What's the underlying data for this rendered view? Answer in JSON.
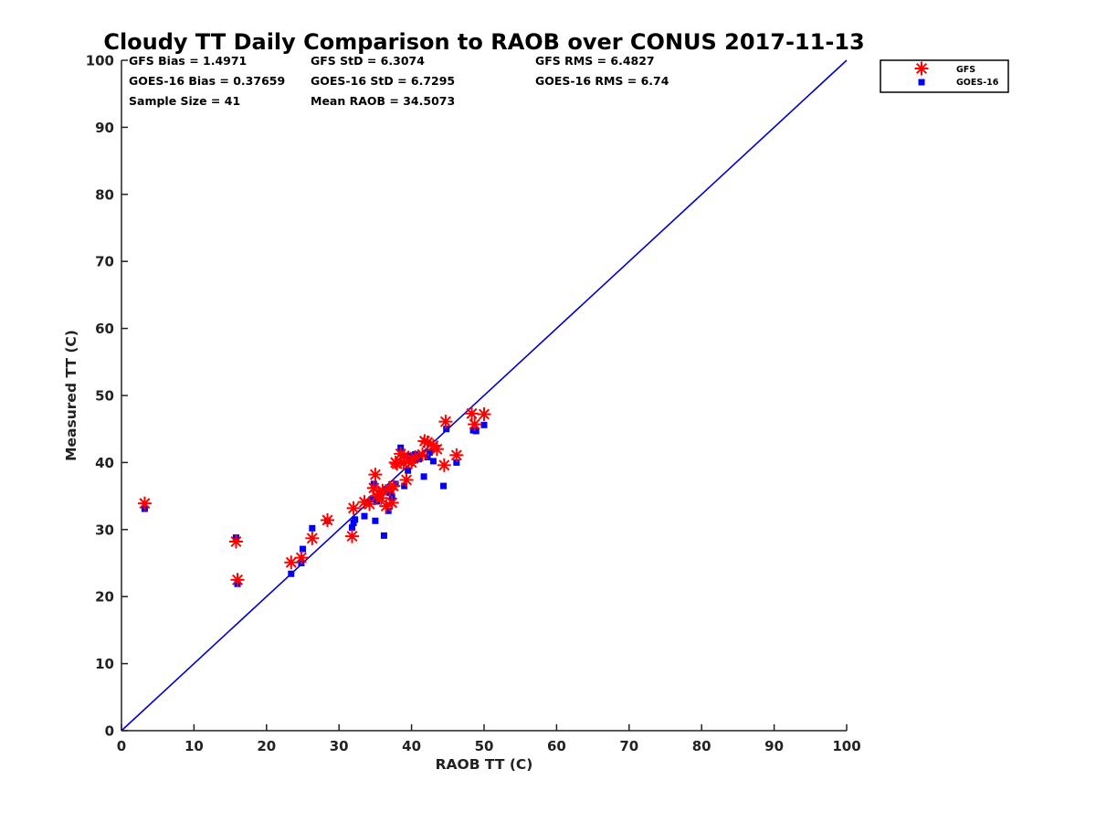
{
  "chart_data": {
    "type": "scatter",
    "title": "Cloudy TT Daily Comparison to RAOB over CONUS 2017-11-13",
    "xlabel": "RAOB TT (C)",
    "ylabel": "Measured TT (C)",
    "xlim": [
      0,
      100
    ],
    "ylim": [
      0,
      100
    ],
    "xticks": [
      "0",
      "10",
      "20",
      "30",
      "40",
      "50",
      "60",
      "70",
      "80",
      "90",
      "100"
    ],
    "yticks": [
      "0",
      "10",
      "20",
      "30",
      "40",
      "50",
      "60",
      "70",
      "80",
      "90",
      "100"
    ],
    "grid": false,
    "legend_position": "outside-top-right",
    "reference_line": {
      "x": [
        0,
        100
      ],
      "y": [
        0,
        100
      ],
      "color": "#0000cc"
    },
    "stats": [
      "GFS Bias = 1.4971",
      "GFS StD = 6.3074",
      "GFS RMS = 6.4827",
      "GOES-16 Bias = 0.37659",
      "GOES-16 StD = 6.7295",
      "GOES-16 RMS = 6.74",
      "Sample Size = 41",
      "Mean RAOB = 34.5073"
    ],
    "series": [
      {
        "name": "GFS",
        "marker": "asterisk",
        "color": "#ff0000",
        "x": [
          3.2,
          15.8,
          16.0,
          23.4,
          24.8,
          26.3,
          28.4,
          31.8,
          32.0,
          33.5,
          34.2,
          34.8,
          35.0,
          35.5,
          35.8,
          36.5,
          37.0,
          37.3,
          37.8,
          38.5,
          38.9,
          39.3,
          39.6,
          40.0,
          40.5,
          41.8,
          42.2,
          43.0,
          44.5,
          44.7,
          46.2,
          48.3,
          48.7,
          50.0,
          35.2,
          36.0,
          38.0,
          39.0,
          41.5,
          37.5,
          43.5
        ],
        "y": [
          33.9,
          28.2,
          22.5,
          25.1,
          25.8,
          28.7,
          31.4,
          29.0,
          33.2,
          34.1,
          33.8,
          36.2,
          38.2,
          35.3,
          34.7,
          33.5,
          36.0,
          34.0,
          40.0,
          41.3,
          39.9,
          37.4,
          40.2,
          40.0,
          40.8,
          43.2,
          43.0,
          42.5,
          39.6,
          46.1,
          41.1,
          47.3,
          45.7,
          47.2,
          35.0,
          35.8,
          39.8,
          41.0,
          41.2,
          36.5,
          42.0
        ]
      },
      {
        "name": "GOES-16",
        "marker": "square",
        "color": "#0000ff",
        "x": [
          3.2,
          15.8,
          16.0,
          23.4,
          24.8,
          25.0,
          26.3,
          28.4,
          31.8,
          32.0,
          32.2,
          33.5,
          34.0,
          34.8,
          35.0,
          35.2,
          35.6,
          36.2,
          36.8,
          37.0,
          37.3,
          37.8,
          38.5,
          39.0,
          39.5,
          39.8,
          40.2,
          41.0,
          41.7,
          42.2,
          42.5,
          43.0,
          44.4,
          44.8,
          46.2,
          48.5,
          48.9,
          50.0,
          34.5,
          36.5,
          40.5
        ],
        "y": [
          33.1,
          28.8,
          21.9,
          23.4,
          25.0,
          27.1,
          30.2,
          31.3,
          30.3,
          31.0,
          31.5,
          32.0,
          34.0,
          36.8,
          31.3,
          34.2,
          34.8,
          29.1,
          32.8,
          35.5,
          34.8,
          36.8,
          42.2,
          36.5,
          38.8,
          41.0,
          40.8,
          40.5,
          37.9,
          40.8,
          41.5,
          40.2,
          36.5,
          45.0,
          40.0,
          44.8,
          44.7,
          45.6,
          34.5,
          36.0,
          41.2
        ]
      }
    ]
  }
}
